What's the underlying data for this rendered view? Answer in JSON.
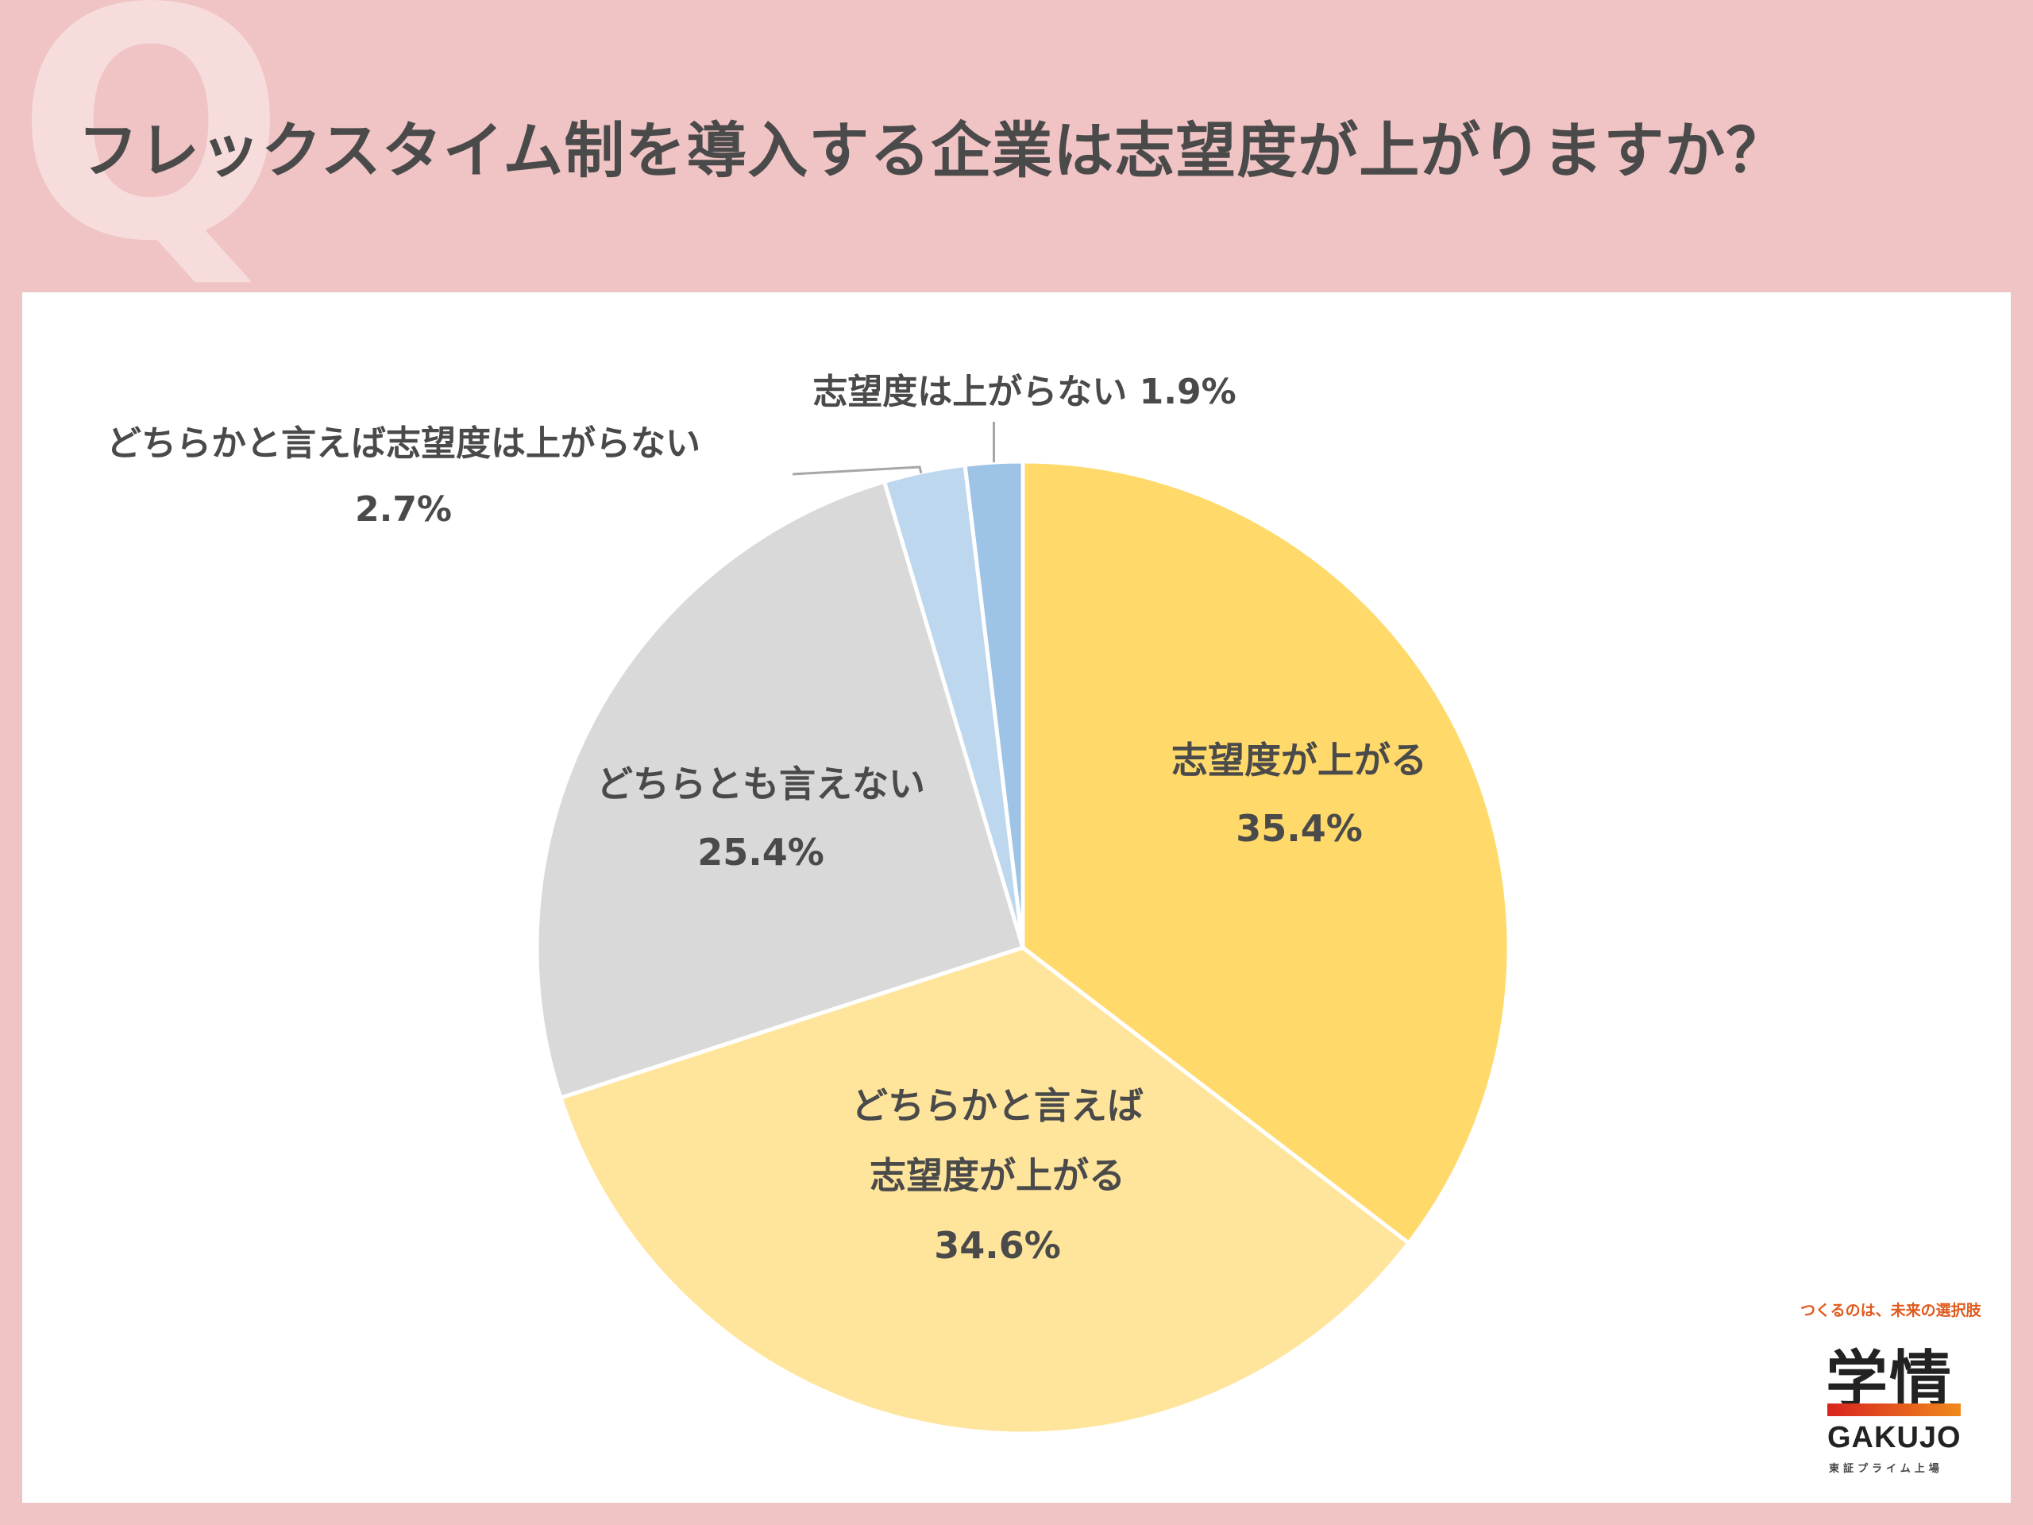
{
  "header": {
    "title": "フレックスタイム制を導入する企業は志望度が上がりますか？",
    "decoration": "Q"
  },
  "chart_data": {
    "type": "pie",
    "start": "12 o'clock",
    "direction": "clockwise",
    "slices": [
      {
        "label": [
          "志望度が上がる"
        ],
        "value": 35.4,
        "pct": "35.4%",
        "color": "#ffd96a",
        "label_mode": "inside"
      },
      {
        "label": [
          "どちらかと言えば",
          "志望度が上がる"
        ],
        "value": 34.6,
        "pct": "34.6%",
        "color": "#ffe59c",
        "label_mode": "inside"
      },
      {
        "label": [
          "どちらとも言えない"
        ],
        "value": 25.4,
        "pct": "25.4%",
        "color": "#d9d9d9",
        "label_mode": "inside"
      },
      {
        "label": [
          "どちらかと言えば志望度は上がらない"
        ],
        "value": 2.7,
        "pct": "2.7%",
        "color": "#bdd7ee",
        "label_mode": "outside-left"
      },
      {
        "label": [
          "志望度は上がらない"
        ],
        "value": 1.9,
        "pct": "1.9%",
        "color": "#9dc3e6",
        "label_mode": "outside-top"
      }
    ]
  },
  "logo": {
    "tagline": "つくるのは、未来の選択肢",
    "kanji": "学情",
    "name": "GAKUJO",
    "sub": "東証プライム上場"
  }
}
